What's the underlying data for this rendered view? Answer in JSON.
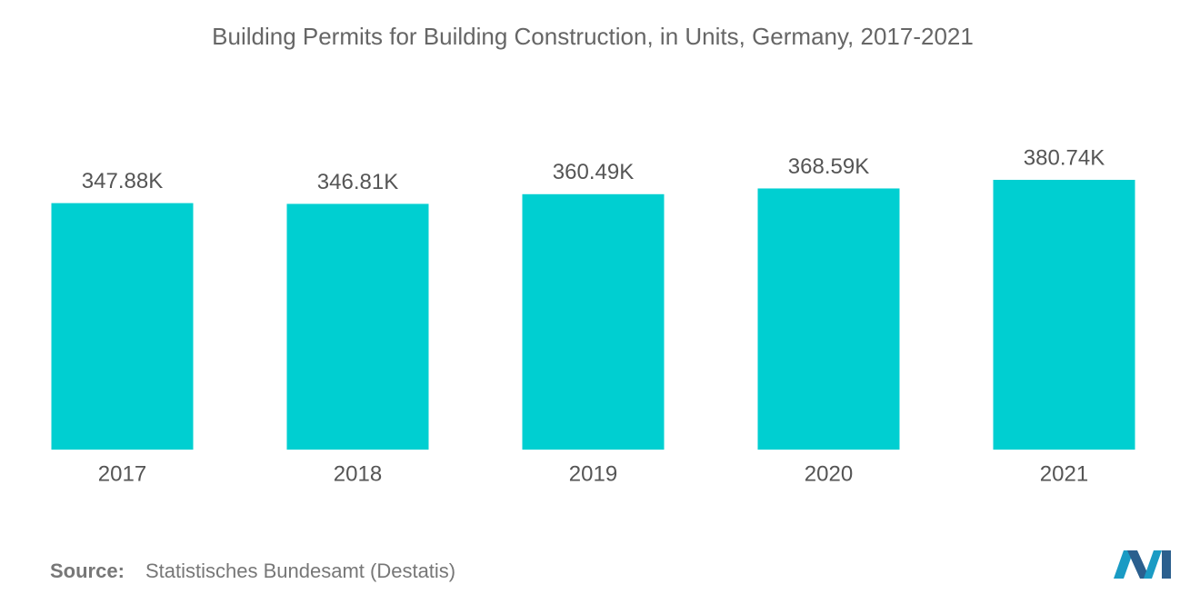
{
  "chart_data": {
    "type": "bar",
    "title": "Building Permits for Building Construction, in Units, Germany, 2017-2021",
    "categories": [
      "2017",
      "2018",
      "2019",
      "2020",
      "2021"
    ],
    "values": [
      347880,
      346810,
      360490,
      368590,
      380740
    ],
    "value_labels": [
      "347.88K",
      "346.81K",
      "360.49K",
      "368.59K",
      "380.74K"
    ],
    "color": "#00cfd1",
    "source_label": "Source:",
    "source": "Statistisches Bundesamt (Destatis)"
  }
}
